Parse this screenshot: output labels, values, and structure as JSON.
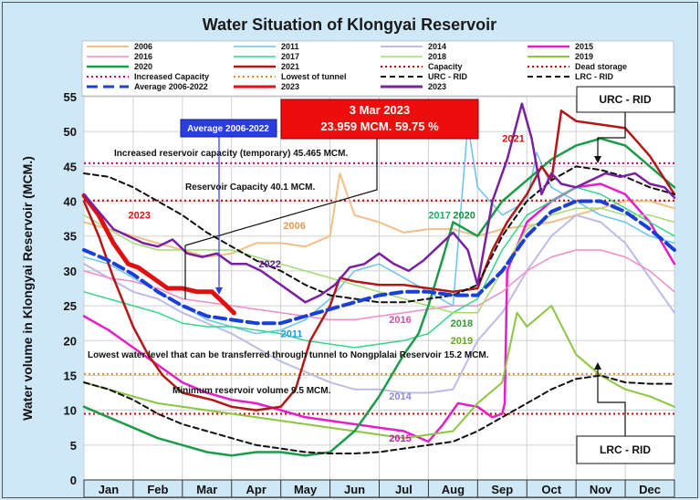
{
  "chart_data": {
    "type": "line",
    "title": "Water Situation of Klongyai Reservoir",
    "ylabel": "Water volume in Klongyai Reservoir (MCM.)",
    "xlabel": "",
    "ylim": [
      0,
      55
    ],
    "yticks": [
      0,
      5,
      10,
      15,
      20,
      25,
      30,
      35,
      40,
      45,
      50,
      55
    ],
    "months": [
      "Jan",
      "Feb",
      "Mar",
      "Apr",
      "May",
      "Jun",
      "Jul",
      "Aug",
      "Sep",
      "Oct",
      "Nov",
      "Dec"
    ],
    "grid": true,
    "legend_position": "top",
    "legend": [
      "2006",
      "2011",
      "2014",
      "2015",
      "2016",
      "2017",
      "2018",
      "2019",
      "2020",
      "2021",
      "Capacity",
      "Dead storage",
      "Increased Capacity",
      "Lowest of tunnel",
      "URC - RID",
      "LRC - RID",
      "Average 2006-2022",
      "2023",
      "2023"
    ],
    "reference_lines": [
      {
        "name": "Increased Capacity",
        "value": 45.465,
        "color": "#d5006d"
      },
      {
        "name": "Capacity",
        "value": 40.1,
        "color": "#cc0000"
      },
      {
        "name": "Lowest of tunnel",
        "value": 15.2,
        "color": "#e08a2c"
      },
      {
        "name": "Dead storage",
        "value": 9.5,
        "color": "#cc0000"
      }
    ],
    "series": [
      {
        "name": "2006",
        "color": "#f2bf88",
        "width": 2,
        "label": "2006",
        "label_color": "#e39b52",
        "label_at": [
          4.05,
          36
        ],
        "x": [
          0,
          0.5,
          1,
          1.5,
          2,
          2.5,
          3,
          3.5,
          4,
          4.5,
          5,
          5.2,
          5.5,
          6,
          6.5,
          7,
          7.5,
          8,
          8.5,
          9,
          9.5,
          10,
          10.5,
          11,
          11.5,
          12
        ],
        "y": [
          37,
          36,
          35,
          34,
          33,
          32,
          32.5,
          34,
          34,
          33.5,
          35,
          44,
          38,
          37,
          35.5,
          36,
          36,
          35,
          36,
          36.5,
          37,
          38,
          39,
          40,
          40,
          39
        ]
      },
      {
        "name": "2011",
        "color": "#69c3e8",
        "width": 1.5,
        "label": "2011",
        "label_color": "#1f9ad6",
        "label_at": [
          4,
          20.5
        ],
        "x": [
          0,
          0.5,
          1,
          1.5,
          2,
          2.5,
          3,
          3.5,
          4,
          4.5,
          5,
          5.5,
          6,
          6.5,
          7,
          7.5,
          7.8,
          8,
          8.5,
          9,
          9.2,
          9.5,
          10,
          10.5,
          11,
          11.5,
          12
        ],
        "y": [
          32,
          31,
          29,
          27,
          25,
          23,
          22,
          21,
          21.5,
          23,
          26,
          30,
          31,
          29,
          27,
          25,
          51,
          42,
          38,
          40,
          47,
          42,
          40,
          38,
          37,
          35,
          34
        ]
      },
      {
        "name": "2014",
        "color": "#bcbce6",
        "width": 2,
        "label": "2014",
        "label_color": "#8a87d6",
        "label_at": [
          6.2,
          11.5
        ],
        "x": [
          0,
          0.5,
          1,
          1.5,
          2,
          2.5,
          3,
          3.5,
          4,
          4.5,
          5,
          5.5,
          6,
          6.5,
          7,
          7.5,
          8,
          8.5,
          9,
          9.5,
          10,
          10.5,
          11,
          11.5,
          12
        ],
        "y": [
          31,
          29,
          27,
          26,
          24,
          22.5,
          21,
          19,
          17,
          15.5,
          14,
          13,
          13,
          12.5,
          12.5,
          13,
          20,
          24,
          30,
          35,
          38,
          37,
          34,
          29,
          24
        ]
      },
      {
        "name": "2015",
        "color": "#e61ec8",
        "width": 2.5,
        "label": "2015",
        "label_color": "#d313b5",
        "label_at": [
          6.2,
          5.5
        ],
        "x": [
          0,
          0.5,
          1,
          1.5,
          2,
          2.5,
          3,
          3.5,
          4,
          4.5,
          5,
          5.5,
          6,
          6.5,
          7,
          7.3,
          7.6,
          8,
          8.3,
          8.5,
          8.55,
          8.6,
          9,
          9.5,
          10,
          10.5,
          11,
          11.5,
          12
        ],
        "y": [
          23.5,
          21.5,
          19,
          16.5,
          14,
          12.5,
          11.5,
          11,
          10,
          9,
          8.5,
          8,
          7.5,
          7,
          5.5,
          8,
          11,
          10.5,
          9,
          9.5,
          11,
          30,
          37,
          40,
          42,
          42.5,
          41,
          37,
          31
        ]
      },
      {
        "name": "2016",
        "color": "#f08cc8",
        "width": 1.5,
        "label": "2016",
        "label_color": "#d64ca8",
        "label_at": [
          6.2,
          22.5
        ],
        "x": [
          0,
          0.5,
          1,
          1.5,
          2,
          2.5,
          3,
          3.5,
          4,
          4.5,
          5,
          5.5,
          6,
          6.5,
          7,
          7.5,
          8,
          8.5,
          9,
          9.5,
          10,
          10.5,
          11,
          11.5,
          12
        ],
        "y": [
          30,
          29,
          28.5,
          27.5,
          26,
          25.5,
          25,
          24.5,
          24,
          23.5,
          23,
          23,
          23.5,
          24,
          24.5,
          25,
          25,
          27,
          30,
          32,
          33,
          33,
          32,
          30,
          27
        ]
      },
      {
        "name": "2017",
        "color": "#38d48c",
        "width": 1.5,
        "label": "2017",
        "label_color": "#1dac66",
        "label_at": [
          7,
          37.5
        ],
        "x": [
          0,
          0.5,
          1,
          1.5,
          2,
          2.5,
          3,
          3.5,
          4,
          4.5,
          5,
          5.5,
          6,
          6.5,
          7,
          7.5,
          8,
          8.5,
          9,
          9.5,
          10,
          10.5,
          11,
          11.5,
          12
        ],
        "y": [
          27,
          26,
          25,
          24,
          22.5,
          22,
          22,
          21.5,
          21,
          20,
          19.5,
          19,
          19.5,
          20,
          21,
          24,
          26,
          33,
          38,
          40,
          42,
          41,
          39,
          37,
          35
        ]
      },
      {
        "name": "2018",
        "color": "#a3dc72",
        "width": 1.5,
        "label": "2018",
        "label_color": "#2f9b34",
        "label_at": [
          7.45,
          22
        ],
        "x": [
          0,
          0.5,
          1,
          1.5,
          2,
          2.5,
          3,
          3.5,
          4,
          4.5,
          5,
          5.5,
          6,
          6.5,
          7,
          7.5,
          8,
          8.5,
          9,
          9.5,
          10,
          10.5,
          11,
          11.5,
          12
        ],
        "y": [
          38,
          36,
          34,
          33,
          33,
          33,
          33,
          32,
          31,
          30,
          29,
          28,
          27,
          26,
          25,
          24,
          24,
          30,
          36,
          38,
          39,
          39,
          38,
          38,
          37
        ]
      },
      {
        "name": "2019",
        "color": "#8cc63f",
        "width": 2,
        "label": "2019",
        "label_color": "#6aa51e",
        "label_at": [
          7.45,
          19.5
        ],
        "x": [
          0,
          0.5,
          1,
          1.5,
          2,
          2.5,
          3,
          3.5,
          4,
          4.5,
          5,
          5.5,
          6,
          6.5,
          7,
          7.5,
          8,
          8.5,
          8.8,
          9,
          9.5,
          10,
          10.5,
          11,
          11.5,
          12
        ],
        "y": [
          14,
          13,
          12,
          11,
          10.5,
          10,
          9.5,
          9,
          8.5,
          8,
          7.5,
          7,
          6.5,
          6,
          6.5,
          7,
          11,
          14,
          24,
          22,
          25,
          18,
          15,
          13,
          12,
          10.5
        ]
      },
      {
        "name": "2020",
        "color": "#1c9b4a",
        "width": 2.5,
        "label": "2020",
        "label_color": "#1a8c3f",
        "label_at": [
          7.5,
          37.5
        ],
        "x": [
          0,
          0.5,
          1,
          1.5,
          2,
          2.5,
          3,
          3.5,
          4,
          4.5,
          5,
          5.5,
          6,
          6.5,
          6.8,
          7,
          7.3,
          7.5,
          8,
          8.5,
          9,
          9.5,
          10,
          10.5,
          11,
          11.5,
          12
        ],
        "y": [
          10.5,
          9,
          7.5,
          6,
          5,
          4,
          3.5,
          4,
          4,
          3.5,
          4,
          7,
          12,
          18,
          21,
          25,
          32,
          37,
          35,
          40,
          43,
          46,
          48,
          49,
          48,
          45,
          42
        ]
      },
      {
        "name": "2021",
        "color": "#b31717",
        "width": 2.5,
        "label": "2021",
        "label_color": "#cc1111",
        "label_at": [
          8.5,
          48.5
        ],
        "x": [
          0,
          0.3,
          0.6,
          1,
          1.3,
          1.6,
          2,
          2.3,
          2.6,
          3,
          3.5,
          4,
          4.3,
          4.6,
          5,
          5.2,
          5.5,
          6,
          6.5,
          7,
          7.5,
          8,
          8.3,
          8.6,
          9,
          9.3,
          9.5,
          9.7,
          10,
          10.5,
          11,
          11.5,
          12
        ],
        "y": [
          40,
          35,
          29,
          22,
          18,
          15,
          12.5,
          12,
          11.5,
          10.5,
          10,
          10.5,
          13,
          20,
          25,
          29,
          28.5,
          28,
          28,
          27.5,
          27,
          27.5,
          33,
          37,
          41,
          45,
          43,
          53,
          51.5,
          51,
          50.5,
          46.5,
          41
        ]
      },
      {
        "name": "URC - RID",
        "color": "#111111",
        "width": 2,
        "dash": "6 4",
        "x": [
          0,
          0.5,
          1,
          1.5,
          2,
          2.5,
          3,
          3.5,
          4,
          4.5,
          5,
          5.5,
          6,
          6.5,
          7,
          7.5,
          8,
          8.5,
          9,
          9.5,
          10,
          10.5,
          11,
          11.5,
          12
        ],
        "y": [
          44,
          43.5,
          42,
          40,
          38,
          35.5,
          33.5,
          31.5,
          30,
          28,
          26.5,
          26,
          25.5,
          25.5,
          26,
          26.5,
          28,
          35,
          40,
          43,
          45,
          44.5,
          43.5,
          42,
          41
        ]
      },
      {
        "name": "LRC - RID",
        "color": "#111111",
        "width": 2,
        "dash": "6 4",
        "x": [
          0,
          0.5,
          1,
          1.5,
          2,
          2.5,
          3,
          3.5,
          4,
          4.5,
          5,
          5.5,
          6,
          6.5,
          7,
          7.5,
          8,
          8.5,
          9,
          9.5,
          10,
          10.5,
          11,
          11.5,
          12
        ],
        "y": [
          14,
          13,
          11.5,
          9.5,
          8,
          7,
          6,
          5,
          4.5,
          4,
          3.8,
          3.8,
          4,
          4.5,
          5,
          5.5,
          7,
          9,
          11,
          13,
          14.5,
          15,
          14,
          13.8,
          13.8
        ]
      },
      {
        "name": "Average 2006-2022",
        "color": "#1a3fd6",
        "width": 4,
        "dash": "12 6",
        "x": [
          0,
          0.5,
          1,
          1.5,
          2,
          2.5,
          3,
          3.5,
          4,
          4.5,
          5,
          5.5,
          6,
          6.5,
          7,
          7.5,
          8,
          8.5,
          9,
          9.5,
          10,
          10.5,
          11,
          11.5,
          12
        ],
        "y": [
          33,
          31.5,
          29.5,
          27,
          25,
          23.5,
          23,
          22.5,
          22.5,
          23.5,
          24.5,
          25.5,
          26.5,
          27,
          27,
          26.5,
          26.5,
          30,
          35,
          38.5,
          40,
          40,
          38.5,
          36,
          33
        ]
      },
      {
        "name": "2023",
        "color": "#dd1111",
        "width": 5,
        "label": "2023",
        "label_color": "#dd1111",
        "label_at": [
          0.9,
          37.5
        ],
        "x": [
          0,
          0.3,
          0.6,
          0.9,
          1.1,
          1.4,
          1.7,
          2,
          2.3,
          2.6,
          2.9,
          3.05
        ],
        "y": [
          40.8,
          38,
          34,
          31,
          30.5,
          29,
          27.5,
          27.5,
          27,
          27,
          25,
          23.96
        ]
      },
      {
        "name": "2022",
        "color": "#7a1fa2",
        "width": 2.5,
        "label": "2022",
        "label_color": "#6a1b9a",
        "label_at": [
          3.55,
          30.5
        ],
        "x": [
          0,
          0.3,
          0.6,
          0.9,
          1.2,
          1.5,
          1.8,
          2.1,
          2.4,
          2.7,
          3,
          3.3,
          3.6,
          3.9,
          4.2,
          4.5,
          4.8,
          5.1,
          5.4,
          5.7,
          6,
          6.3,
          6.6,
          6.9,
          7.2,
          7.5,
          7.8,
          8,
          8.3,
          8.6,
          8.9,
          9.1,
          9.3,
          9.5,
          9.7,
          10,
          10.3,
          10.6,
          10.9,
          11.2,
          11.5,
          11.8,
          12
        ],
        "y": [
          41,
          38.5,
          36,
          35,
          34,
          33.5,
          34.5,
          32.5,
          32,
          32.5,
          31,
          31,
          30,
          28.5,
          27,
          25.5,
          26.5,
          28,
          30.5,
          31,
          32.5,
          31,
          30,
          31.5,
          33.5,
          35.5,
          33,
          28,
          40,
          46,
          54,
          49,
          41,
          44,
          42.5,
          42,
          43,
          44,
          43.5,
          44,
          42.5,
          42,
          40.5
        ]
      }
    ],
    "annotations": {
      "increased_capacity": "Increased reservoir capacity (temporary) 45.465 MCM.",
      "capacity": "Reservoir Capacity 40.1 MCM.",
      "tunnel": "Lowest water level that can be transferred through tunnel to Nongplalai Reservoir 15.2 MCM.",
      "dead_storage": "Minimum reservoir volume 9.5 MCM.",
      "callout_date": "3 Mar 2023",
      "callout_value": "23.959 MCM. 59.75 %",
      "avg_box": "Average 2006-2022",
      "urc_box": "URC - RID",
      "lrc_box": "LRC - RID"
    }
  }
}
